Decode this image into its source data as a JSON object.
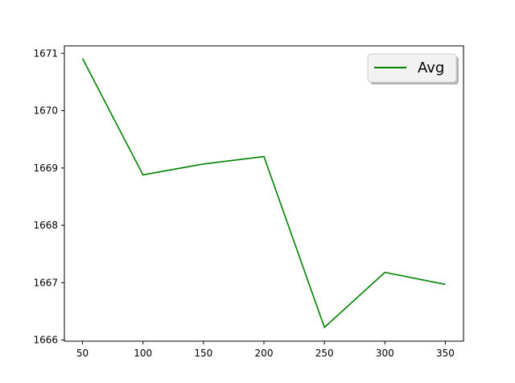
{
  "chart_data": {
    "type": "line",
    "title": "",
    "xlabel": "",
    "ylabel": "",
    "x": [
      50,
      100,
      150,
      200,
      250,
      300,
      350
    ],
    "series": [
      {
        "name": "Avg",
        "color": "#008000",
        "values": [
          1670.91,
          1668.88,
          1669.07,
          1669.2,
          1666.22,
          1667.18,
          1666.97
        ]
      }
    ],
    "xlim": [
      35,
      365
    ],
    "ylim": [
      1665.98,
      1671.13
    ],
    "xticks": [
      50,
      100,
      150,
      200,
      250,
      300,
      350
    ],
    "yticks": [
      1666,
      1667,
      1668,
      1669,
      1670,
      1671
    ],
    "grid": false,
    "legend": "top-right"
  }
}
